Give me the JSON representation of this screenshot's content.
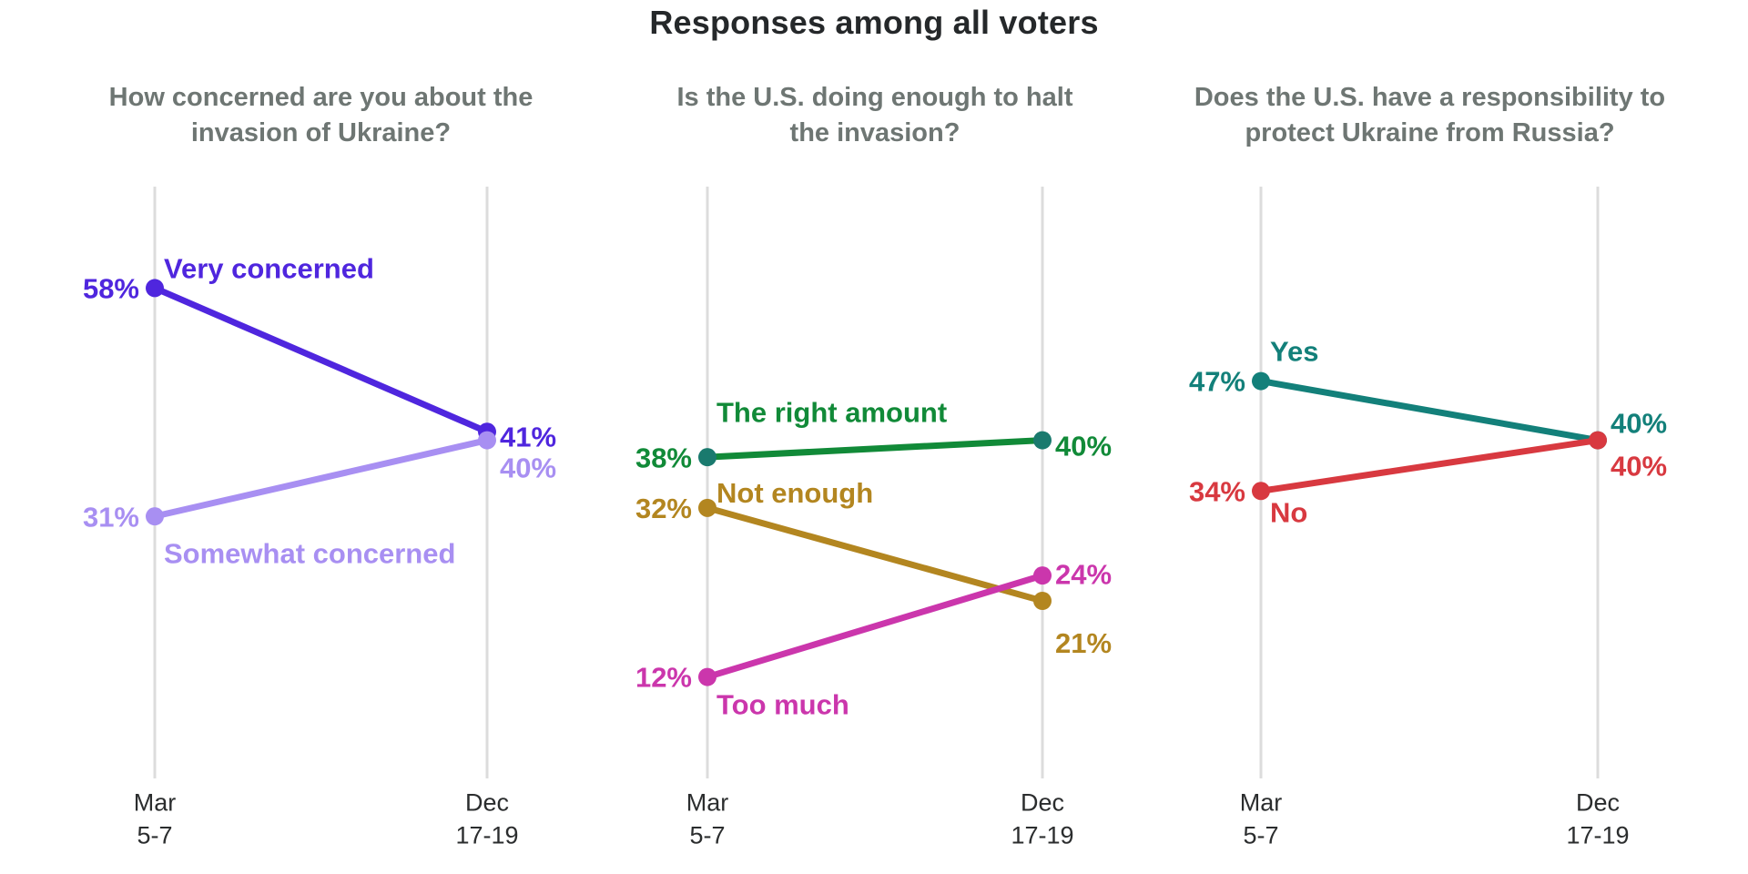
{
  "title": "Responses among all voters",
  "colors": {
    "background": "#ffffff",
    "main_title": "#25282a",
    "panel_title": "#6e7673",
    "axis_tick": "#2b2d2e",
    "gridline": "#dcdcdc"
  },
  "chart_data": [
    {
      "type": "line",
      "title": "How concerned are you about the invasion of Ukraine?",
      "x": [
        "Mar 5-7",
        "Dec 17-19"
      ],
      "ylim": [
        0,
        70
      ],
      "grid": "vertical-only",
      "legend_position": "inline-labels",
      "series": [
        {
          "name": "Very concerned",
          "values": [
            58,
            41
          ],
          "color": "#4f26de",
          "label_pos": "above",
          "name_dy": -22,
          "start_dy": 0,
          "end_dy": 5
        },
        {
          "name": "Somewhat concerned",
          "values": [
            31,
            40
          ],
          "color": "#a88ff2",
          "label_pos": "below",
          "name_dy": 40,
          "start_dy": 0,
          "end_dy": 30
        }
      ]
    },
    {
      "type": "line",
      "title": "Is the U.S. doing enough to halt the invasion?",
      "x": [
        "Mar 5-7",
        "Dec 17-19"
      ],
      "ylim": [
        0,
        70
      ],
      "grid": "vertical-only",
      "legend_position": "inline-labels",
      "series": [
        {
          "name": "The right amount",
          "values": [
            38,
            40
          ],
          "color": "#118a38",
          "dot_color": "#1a7a6e",
          "label_pos": "above",
          "name_dy": -50,
          "start_dy": 0,
          "end_dy": 6
        },
        {
          "name": "Not enough",
          "values": [
            32,
            21
          ],
          "color": "#b38620",
          "label_pos": "above",
          "name_dy": -17,
          "start_dy": 0,
          "end_dy": 46
        },
        {
          "name": "Too much",
          "values": [
            12,
            24
          ],
          "color": "#cb36ac",
          "label_pos": "below",
          "name_dy": 30,
          "start_dy": 0,
          "end_dy": -2
        }
      ]
    },
    {
      "type": "line",
      "title": "Does the U.S. have a responsibility to protect Ukraine from Russia?",
      "x": [
        "Mar 5-7",
        "Dec 17-19"
      ],
      "ylim": [
        0,
        70
      ],
      "grid": "vertical-only",
      "legend_position": "inline-labels",
      "series": [
        {
          "name": "Yes",
          "values": [
            47,
            40
          ],
          "color": "#13807a",
          "label_pos": "above",
          "name_dy": -33,
          "start_dy": 0,
          "end_dy": -19
        },
        {
          "name": "No",
          "values": [
            34,
            40
          ],
          "color": "#d83940",
          "label_pos": "below",
          "name_dy": 23,
          "start_dy": 0,
          "end_dy": 28
        }
      ]
    }
  ]
}
